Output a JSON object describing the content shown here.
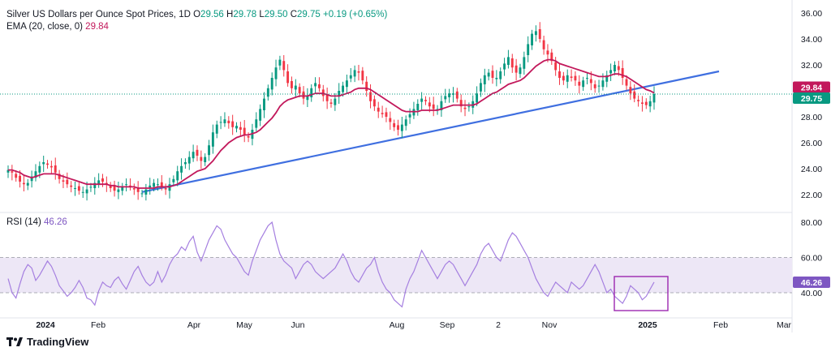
{
  "header": {
    "symbol": "Silver US Dollars per Ounce Spot Prices, 1D",
    "o_label": "O",
    "o_value": "29.56",
    "h_label": "H",
    "h_value": "29.78",
    "l_label": "L",
    "l_value": "29.50",
    "c_label": "C",
    "c_value": "29.75",
    "change": "+0.19 (+0.65%)",
    "ema_label": "EMA (20, close, 0)",
    "ema_value": "29.84",
    "rsi_label": "RSI (14)",
    "rsi_value": "46.26"
  },
  "brand": {
    "name": "TradingView",
    "icon": "tradingview-logo-icon"
  },
  "colors": {
    "up": "#089981",
    "down": "#f23645",
    "ema": "#c2185b",
    "trend": "#3f6fe0",
    "rsi": "#a57fe0",
    "rsi_band": "#ede7f6",
    "highlight": "#9c27b0",
    "current": "#089981"
  },
  "chart_data": [
    {
      "type": "candlestick",
      "title": "Silver US Dollars per Ounce Spot Prices, 1D",
      "ylim": [
        20.5,
        36.5
      ],
      "y_ticks": [
        "36.00",
        "34.00",
        "32.00",
        "30.00",
        "28.00",
        "26.00",
        "24.00",
        "22.00"
      ],
      "x_ticks": [
        "2024",
        "Feb",
        "Apr",
        "May",
        "Jun",
        "Aug",
        "Sep",
        "2",
        "Nov",
        "2025",
        "Feb",
        "Mar"
      ],
      "price_tags": [
        {
          "label": "29.84",
          "series": "EMA"
        },
        {
          "label": "29.75",
          "series": "last price"
        }
      ],
      "series": [
        {
          "name": "Price",
          "values": [
            23.9,
            23.7,
            23.3,
            23.0,
            22.8,
            22.9,
            23.4,
            23.8,
            24.2,
            24.5,
            24.3,
            24.1,
            23.7,
            23.2,
            23.0,
            22.8,
            22.6,
            22.5,
            22.3,
            22.2,
            22.4,
            22.6,
            22.9,
            23.1,
            23.0,
            22.8,
            22.5,
            22.3,
            22.4,
            22.6,
            22.8,
            22.6,
            22.4,
            22.2,
            22.1,
            22.4,
            22.7,
            22.9,
            22.8,
            22.6,
            22.4,
            22.8,
            23.2,
            23.8,
            24.2,
            24.5,
            24.9,
            25.3,
            25.0,
            24.6,
            24.9,
            25.8,
            26.8,
            27.4,
            27.6,
            27.8,
            27.5,
            27.2,
            27.3,
            27.0,
            26.6,
            26.4,
            27.0,
            27.8,
            28.6,
            29.4,
            30.2,
            31.0,
            31.8,
            32.4,
            31.6,
            30.6,
            30.2,
            30.4,
            29.8,
            29.4,
            29.6,
            30.2,
            30.6,
            30.2,
            29.6,
            29.2,
            29.0,
            29.4,
            30.0,
            30.4,
            30.8,
            31.2,
            31.6,
            31.4,
            30.8,
            30.0,
            29.2,
            28.8,
            28.4,
            28.2,
            28.0,
            27.6,
            27.2,
            27.0,
            27.4,
            27.8,
            28.2,
            28.6,
            29.0,
            29.4,
            29.2,
            28.8,
            28.6,
            28.6,
            29.2,
            29.6,
            29.8,
            29.8,
            29.4,
            28.8,
            28.6,
            28.8,
            29.2,
            29.8,
            30.6,
            31.2,
            31.4,
            31.0,
            31.0,
            31.5,
            32.1,
            32.6,
            31.8,
            31.4,
            31.8,
            32.6,
            33.6,
            34.4,
            34.6,
            34.0,
            33.2,
            32.8,
            32.3,
            31.6,
            31.0,
            30.8,
            31.2,
            31.0,
            30.8,
            30.4,
            30.8,
            31.0,
            30.6,
            30.2,
            30.4,
            30.8,
            31.2,
            31.6,
            32.0,
            31.6,
            31.0,
            30.4,
            29.8,
            29.4,
            29.2,
            29.0,
            28.9,
            29.2,
            29.75
          ]
        },
        {
          "name": "EMA (20, close, 0)",
          "values": [
            23.9,
            23.9,
            23.8,
            23.7,
            23.5,
            23.4,
            23.3,
            23.4,
            23.5,
            23.6,
            23.6,
            23.6,
            23.6,
            23.5,
            23.4,
            23.3,
            23.2,
            23.1,
            23.0,
            22.9,
            22.8,
            22.8,
            22.8,
            22.8,
            22.8,
            22.8,
            22.7,
            22.7,
            22.6,
            22.6,
            22.6,
            22.6,
            22.6,
            22.5,
            22.5,
            22.5,
            22.5,
            22.5,
            22.6,
            22.6,
            22.6,
            22.6,
            22.7,
            22.8,
            23.0,
            23.2,
            23.4,
            23.6,
            23.8,
            23.9,
            24.0,
            24.3,
            24.6,
            25.0,
            25.4,
            25.7,
            26.0,
            26.2,
            26.4,
            26.5,
            26.6,
            26.6,
            26.7,
            26.8,
            27.0,
            27.3,
            27.6,
            27.9,
            28.3,
            28.8,
            29.1,
            29.3,
            29.4,
            29.5,
            29.6,
            29.6,
            29.6,
            29.7,
            29.8,
            29.8,
            29.8,
            29.7,
            29.6,
            29.6,
            29.6,
            29.7,
            29.8,
            29.9,
            30.1,
            30.2,
            30.2,
            30.2,
            30.1,
            29.9,
            29.7,
            29.5,
            29.3,
            29.1,
            28.9,
            28.7,
            28.5,
            28.4,
            28.4,
            28.4,
            28.4,
            28.5,
            28.5,
            28.5,
            28.5,
            28.5,
            28.6,
            28.7,
            28.8,
            28.9,
            28.9,
            28.9,
            28.9,
            28.9,
            28.9,
            29.0,
            29.2,
            29.4,
            29.6,
            29.8,
            29.9,
            30.1,
            30.3,
            30.5,
            30.6,
            30.7,
            30.8,
            31.0,
            31.3,
            31.6,
            31.9,
            32.1,
            32.3,
            32.4,
            32.4,
            32.3,
            32.1,
            32.0,
            31.9,
            31.8,
            31.7,
            31.6,
            31.5,
            31.4,
            31.3,
            31.2,
            31.1,
            31.1,
            31.1,
            31.2,
            31.3,
            31.3,
            31.2,
            31.1,
            30.9,
            30.7,
            30.5,
            30.3,
            30.1,
            30.0,
            29.84
          ]
        },
        {
          "name": "Trend line",
          "points": [
            [
              0,
              22.2
            ],
            [
              1,
              31.5
            ]
          ]
        }
      ]
    },
    {
      "type": "line",
      "title": "RSI (14)",
      "ylim": [
        25,
        85
      ],
      "y_ticks": [
        "80.00",
        "60.00",
        "40.00"
      ],
      "band": [
        40,
        60
      ],
      "series": [
        {
          "name": "RSI (14)",
          "values": [
            48,
            40,
            37,
            45,
            52,
            56,
            54,
            47,
            50,
            54,
            58,
            55,
            50,
            44,
            41,
            38,
            40,
            43,
            47,
            43,
            37,
            36,
            33,
            41,
            46,
            44,
            43,
            47,
            49,
            45,
            42,
            47,
            52,
            55,
            50,
            46,
            44,
            46,
            52,
            46,
            50,
            56,
            60,
            62,
            66,
            64,
            69,
            72,
            63,
            58,
            64,
            70,
            74,
            78,
            76,
            70,
            66,
            62,
            60,
            56,
            52,
            50,
            58,
            64,
            70,
            74,
            78,
            80,
            70,
            62,
            58,
            56,
            54,
            48,
            52,
            56,
            58,
            56,
            52,
            50,
            48,
            50,
            52,
            54,
            58,
            62,
            58,
            52,
            48,
            46,
            50,
            54,
            56,
            60,
            52,
            46,
            42,
            40,
            36,
            34,
            32,
            42,
            48,
            52,
            58,
            64,
            60,
            56,
            52,
            48,
            52,
            56,
            58,
            56,
            52,
            48,
            44,
            48,
            52,
            56,
            62,
            66,
            68,
            64,
            60,
            58,
            64,
            70,
            74,
            72,
            68,
            64,
            60,
            54,
            48,
            44,
            40,
            38,
            42,
            46,
            44,
            42,
            40,
            46,
            44,
            42,
            44,
            48,
            52,
            56,
            52,
            46,
            40,
            42,
            38,
            36,
            34,
            38,
            44,
            42,
            40,
            36,
            38,
            42,
            46
          ]
        }
      ]
    }
  ],
  "highlight_box": {
    "label": "rsi-highlight"
  }
}
